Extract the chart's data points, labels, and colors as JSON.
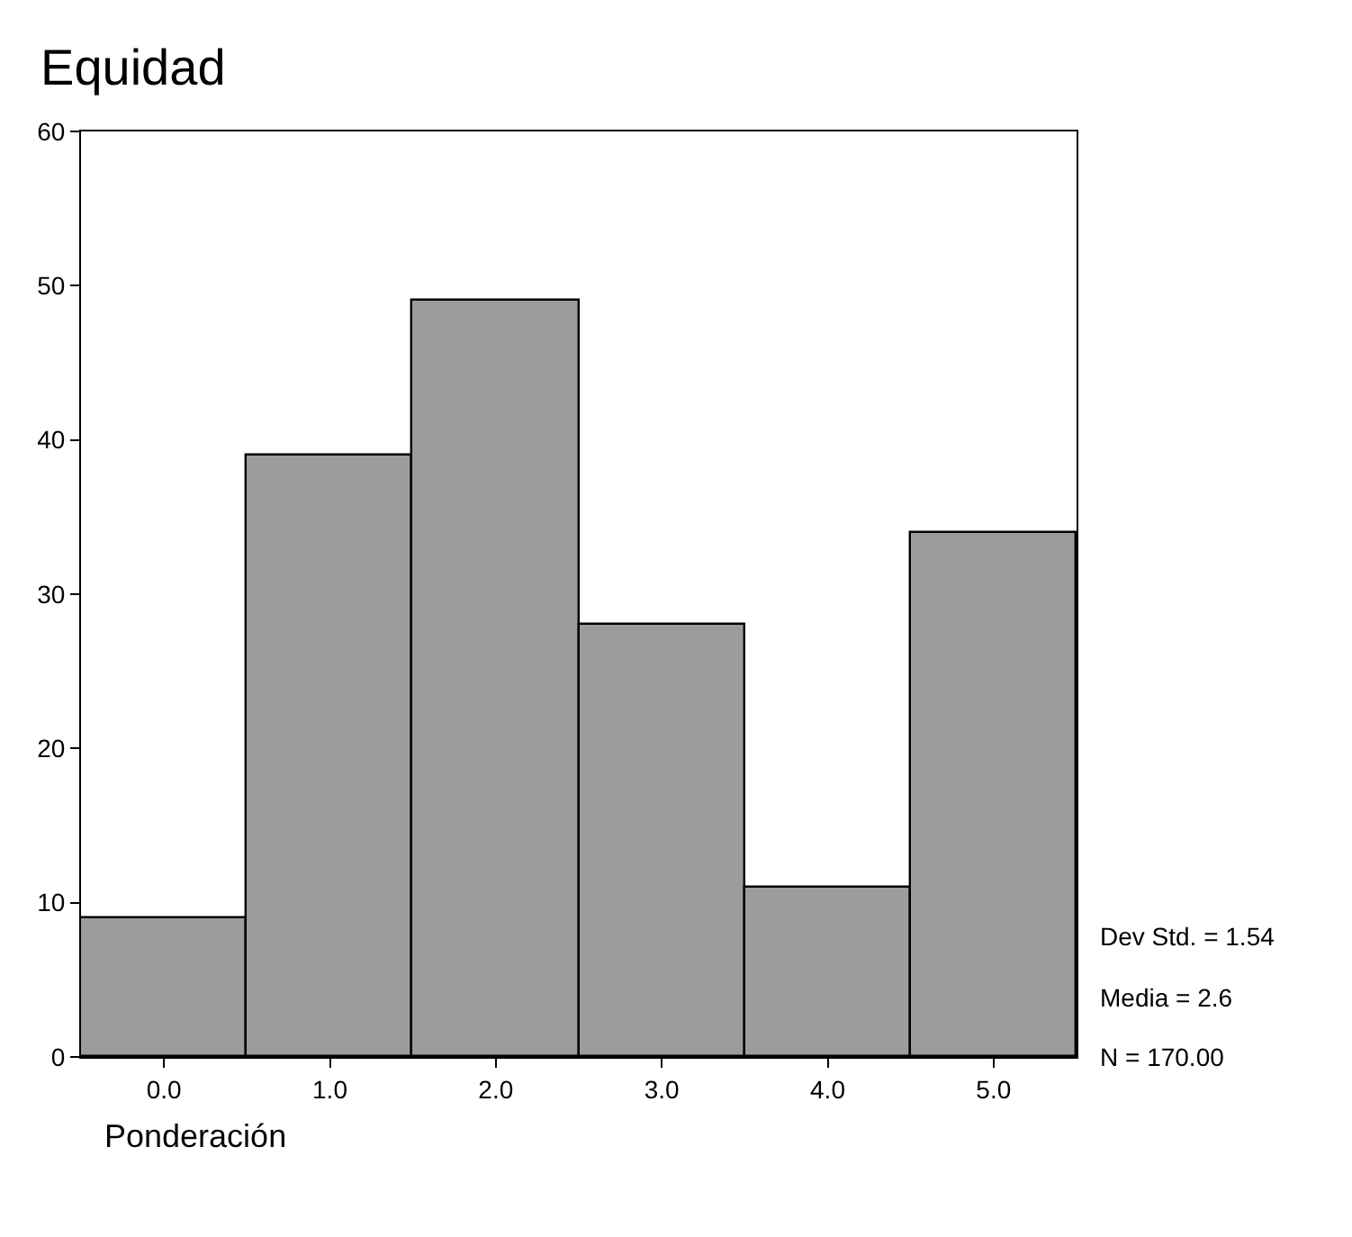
{
  "chart_data": {
    "type": "histogram",
    "title": "Equidad",
    "xlabel": "Ponderación",
    "bins": [
      -0.5,
      0.5,
      1.5,
      2.5,
      3.5,
      4.5,
      5.5
    ],
    "values": [
      9,
      39,
      49,
      28,
      11,
      34
    ],
    "color": "#9c9c9c",
    "xlim": [
      -0.5,
      5.5
    ],
    "xticks": [
      {
        "value": 0,
        "label": "0.0"
      },
      {
        "value": 1,
        "label": "1.0"
      },
      {
        "value": 2,
        "label": "2.0"
      },
      {
        "value": 3,
        "label": "3.0"
      },
      {
        "value": 4,
        "label": "4.0"
      },
      {
        "value": 5,
        "label": "5.0"
      }
    ],
    "ylim": [
      0,
      60
    ],
    "yticks": [
      0,
      10,
      20,
      30,
      40,
      50,
      60
    ],
    "annotations": [
      "Dev Std. = 1.54",
      "Media = 2.6",
      "N = 170.00"
    ]
  }
}
